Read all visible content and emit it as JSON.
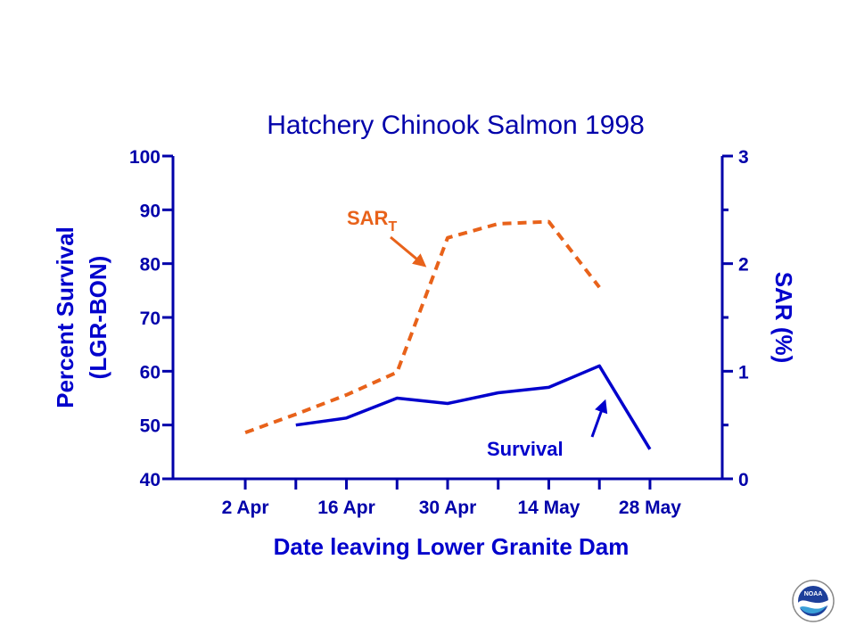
{
  "chart_data": {
    "type": "line",
    "title": "Hatchery Chinook Salmon 1998",
    "xlabel": "Date leaving Lower Granite  Dam",
    "ylabel_left": [
      "Percent Survival",
      "(LGR-BON)"
    ],
    "ylabel_right": "SAR (%)",
    "x_tick_labels": [
      "2 Apr",
      "16 Apr",
      "30 Apr",
      "14 May",
      "28 May"
    ],
    "x_tick_positions": [
      2,
      16,
      30,
      44,
      58
    ],
    "xlim": [
      -8,
      68
    ],
    "x_minor_ticks": [
      9,
      23,
      37,
      51
    ],
    "ylim_left": [
      40,
      100
    ],
    "yticks_left": [
      40,
      50,
      60,
      70,
      80,
      90,
      100
    ],
    "ylim_right": [
      0,
      3
    ],
    "yticks_right": [
      0,
      1,
      2,
      3
    ],
    "yminor_right": [
      0.5,
      1.5,
      2.5
    ],
    "grid": false,
    "series": [
      {
        "name": "Survival",
        "axis": "left",
        "color": "#0000cc",
        "dash": "solid",
        "x": [
          9,
          16,
          23,
          30,
          37,
          44,
          51,
          58
        ],
        "y": [
          50,
          51.3,
          55,
          54,
          56,
          57,
          61,
          45.5
        ]
      },
      {
        "name": "SAR",
        "subscript": "T",
        "axis": "right",
        "color": "#e8621a",
        "dash": "dashed",
        "x": [
          2,
          9,
          16,
          23,
          30,
          37,
          44,
          51
        ],
        "y": [
          0.43,
          0.6,
          0.78,
          0.99,
          2.24,
          2.37,
          2.39,
          1.78
        ]
      }
    ],
    "annotations": [
      {
        "text": "SAR",
        "subscript": "T",
        "series": "SAR",
        "points_to_x": 30,
        "points_to_y": 2.0
      },
      {
        "text": "Survival",
        "series": "Survival",
        "points_to_x": 51,
        "points_to_y": 0.7
      }
    ]
  },
  "colors": {
    "axis": "#0000aa",
    "title": "#0000aa",
    "survival": "#0000cc",
    "sar": "#e8621a"
  },
  "logo": {
    "icon": "noaa-logo-icon",
    "text": "NOAA"
  }
}
